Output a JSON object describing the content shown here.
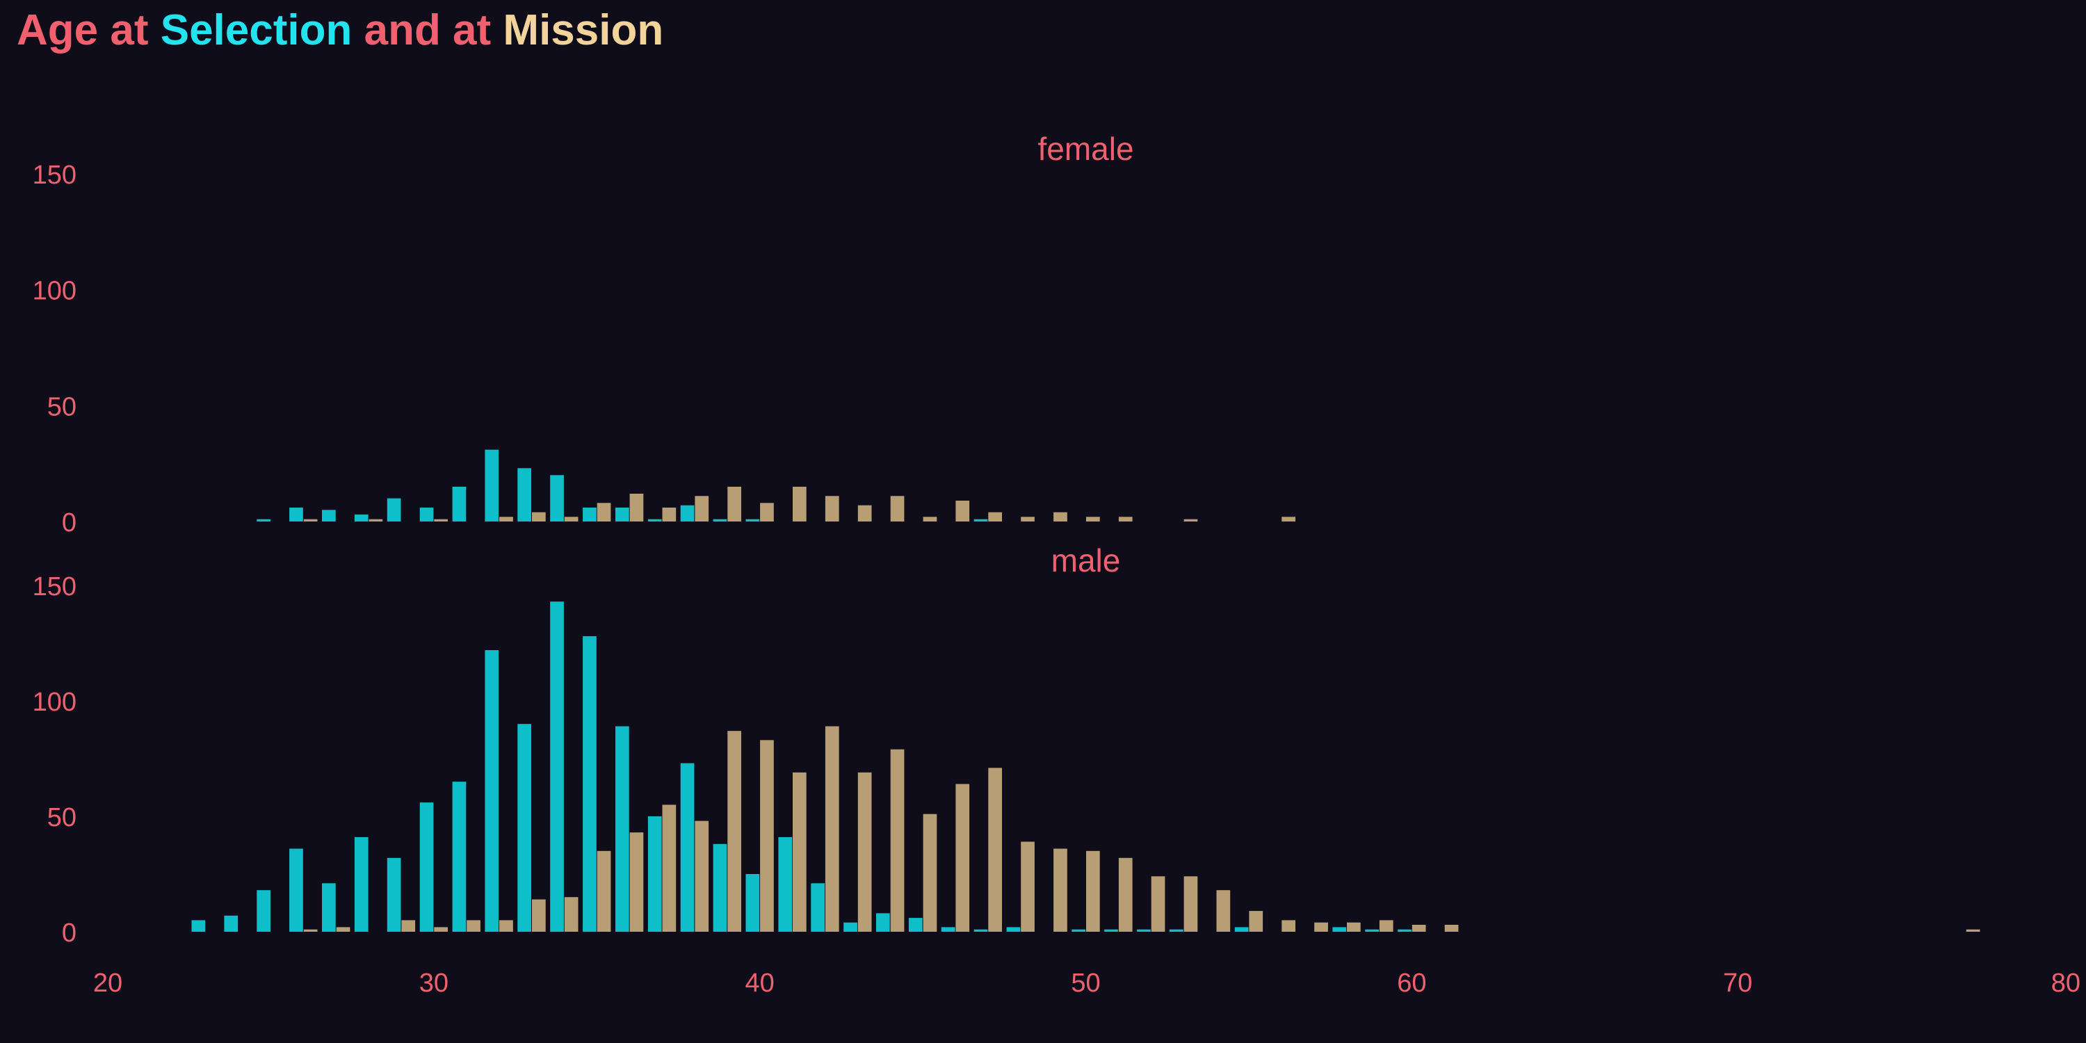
{
  "title": {
    "part1": "Age at",
    "part2": "Selection",
    "part3": "and at",
    "part4": "Mission"
  },
  "colors": {
    "background": "#0f0d1a",
    "text": "#f0606f",
    "selection": "#0ebfc9",
    "mission": "#b89e74",
    "title_selection": "#22e3ee",
    "title_mission": "#f2d39a"
  },
  "chart_data": {
    "type": "bar",
    "xlim": [
      20,
      80
    ],
    "ylim": [
      0,
      150
    ],
    "x_ticks": [
      20,
      30,
      40,
      50,
      60,
      70,
      80
    ],
    "y_ticks": [
      0,
      50,
      100,
      150
    ],
    "grid": false,
    "legend": "none (series identified by title colors)",
    "panels": [
      {
        "label": "female",
        "series": [
          {
            "name": "Selection",
            "points": [
              {
                "x": 25,
                "y": 1
              },
              {
                "x": 26,
                "y": 6
              },
              {
                "x": 27,
                "y": 5
              },
              {
                "x": 28,
                "y": 3
              },
              {
                "x": 29,
                "y": 10
              },
              {
                "x": 30,
                "y": 6
              },
              {
                "x": 31,
                "y": 15
              },
              {
                "x": 32,
                "y": 31
              },
              {
                "x": 33,
                "y": 23
              },
              {
                "x": 34,
                "y": 20
              },
              {
                "x": 35,
                "y": 6
              },
              {
                "x": 36,
                "y": 6
              },
              {
                "x": 37,
                "y": 1
              },
              {
                "x": 38,
                "y": 7
              },
              {
                "x": 39,
                "y": 1
              },
              {
                "x": 40,
                "y": 1
              },
              {
                "x": 47,
                "y": 1
              }
            ]
          },
          {
            "name": "Mission",
            "points": [
              {
                "x": 26,
                "y": 1
              },
              {
                "x": 28,
                "y": 1
              },
              {
                "x": 30,
                "y": 1
              },
              {
                "x": 32,
                "y": 2
              },
              {
                "x": 33,
                "y": 4
              },
              {
                "x": 34,
                "y": 2
              },
              {
                "x": 35,
                "y": 8
              },
              {
                "x": 36,
                "y": 12
              },
              {
                "x": 37,
                "y": 6
              },
              {
                "x": 38,
                "y": 11
              },
              {
                "x": 39,
                "y": 15
              },
              {
                "x": 40,
                "y": 8
              },
              {
                "x": 41,
                "y": 15
              },
              {
                "x": 42,
                "y": 11
              },
              {
                "x": 43,
                "y": 7
              },
              {
                "x": 44,
                "y": 11
              },
              {
                "x": 45,
                "y": 2
              },
              {
                "x": 46,
                "y": 9
              },
              {
                "x": 47,
                "y": 4
              },
              {
                "x": 48,
                "y": 2
              },
              {
                "x": 49,
                "y": 4
              },
              {
                "x": 50,
                "y": 2
              },
              {
                "x": 51,
                "y": 2
              },
              {
                "x": 53,
                "y": 1
              },
              {
                "x": 56,
                "y": 2
              }
            ]
          }
        ]
      },
      {
        "label": "male",
        "series": [
          {
            "name": "Selection",
            "points": [
              {
                "x": 23,
                "y": 5
              },
              {
                "x": 24,
                "y": 7
              },
              {
                "x": 25,
                "y": 18
              },
              {
                "x": 26,
                "y": 36
              },
              {
                "x": 27,
                "y": 21
              },
              {
                "x": 28,
                "y": 41
              },
              {
                "x": 29,
                "y": 32
              },
              {
                "x": 30,
                "y": 56
              },
              {
                "x": 31,
                "y": 65
              },
              {
                "x": 32,
                "y": 122
              },
              {
                "x": 33,
                "y": 90
              },
              {
                "x": 34,
                "y": 143
              },
              {
                "x": 35,
                "y": 128
              },
              {
                "x": 36,
                "y": 89
              },
              {
                "x": 37,
                "y": 50
              },
              {
                "x": 38,
                "y": 73
              },
              {
                "x": 39,
                "y": 38
              },
              {
                "x": 40,
                "y": 25
              },
              {
                "x": 41,
                "y": 41
              },
              {
                "x": 42,
                "y": 21
              },
              {
                "x": 43,
                "y": 4
              },
              {
                "x": 44,
                "y": 8
              },
              {
                "x": 45,
                "y": 6
              },
              {
                "x": 46,
                "y": 2
              },
              {
                "x": 47,
                "y": 1
              },
              {
                "x": 48,
                "y": 2
              },
              {
                "x": 50,
                "y": 1
              },
              {
                "x": 51,
                "y": 1
              },
              {
                "x": 52,
                "y": 1
              },
              {
                "x": 53,
                "y": 1
              },
              {
                "x": 55,
                "y": 2
              },
              {
                "x": 58,
                "y": 2
              },
              {
                "x": 59,
                "y": 1
              },
              {
                "x": 60,
                "y": 1
              }
            ]
          },
          {
            "name": "Mission",
            "points": [
              {
                "x": 26,
                "y": 1
              },
              {
                "x": 27,
                "y": 2
              },
              {
                "x": 29,
                "y": 5
              },
              {
                "x": 30,
                "y": 2
              },
              {
                "x": 31,
                "y": 5
              },
              {
                "x": 32,
                "y": 5
              },
              {
                "x": 33,
                "y": 14
              },
              {
                "x": 34,
                "y": 15
              },
              {
                "x": 35,
                "y": 35
              },
              {
                "x": 36,
                "y": 43
              },
              {
                "x": 37,
                "y": 55
              },
              {
                "x": 38,
                "y": 48
              },
              {
                "x": 39,
                "y": 87
              },
              {
                "x": 40,
                "y": 83
              },
              {
                "x": 41,
                "y": 69
              },
              {
                "x": 42,
                "y": 89
              },
              {
                "x": 43,
                "y": 69
              },
              {
                "x": 44,
                "y": 79
              },
              {
                "x": 45,
                "y": 51
              },
              {
                "x": 46,
                "y": 64
              },
              {
                "x": 47,
                "y": 71
              },
              {
                "x": 48,
                "y": 39
              },
              {
                "x": 49,
                "y": 36
              },
              {
                "x": 50,
                "y": 35
              },
              {
                "x": 51,
                "y": 32
              },
              {
                "x": 52,
                "y": 24
              },
              {
                "x": 53,
                "y": 24
              },
              {
                "x": 54,
                "y": 18
              },
              {
                "x": 55,
                "y": 9
              },
              {
                "x": 56,
                "y": 5
              },
              {
                "x": 57,
                "y": 4
              },
              {
                "x": 58,
                "y": 4
              },
              {
                "x": 59,
                "y": 5
              },
              {
                "x": 60,
                "y": 3
              },
              {
                "x": 61,
                "y": 3
              },
              {
                "x": 77,
                "y": 1
              }
            ]
          }
        ]
      }
    ]
  }
}
